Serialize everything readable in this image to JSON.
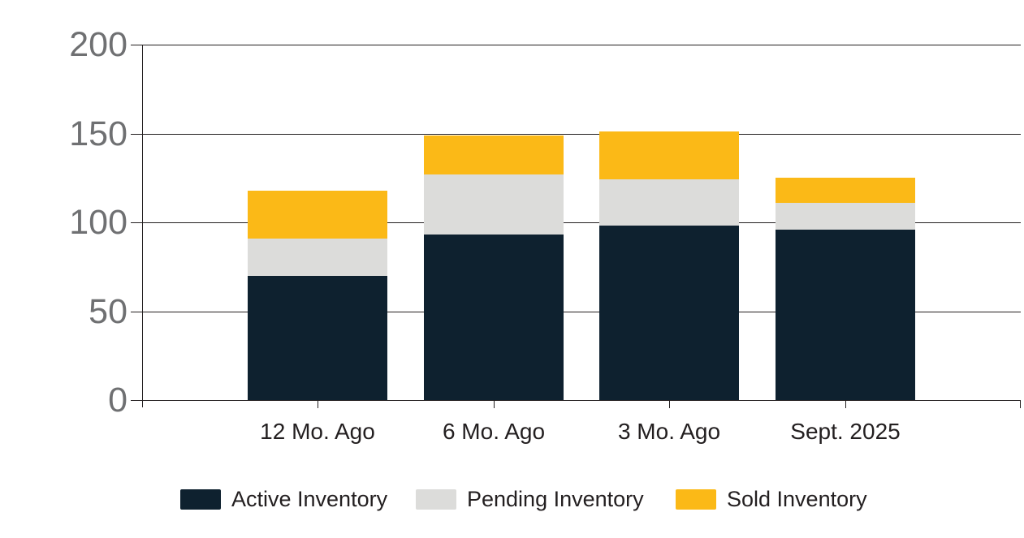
{
  "chart_data": {
    "type": "bar",
    "stacked": true,
    "title": "",
    "xlabel": "",
    "ylabel": "",
    "categories": [
      "12 Mo. Ago",
      "6 Mo. Ago",
      "3 Mo. Ago",
      "Sept. 2025"
    ],
    "series": [
      {
        "name": "Active Inventory",
        "color": "#0E212F",
        "values": [
          70,
          93,
          98,
          96
        ]
      },
      {
        "name": "Pending Inventory",
        "color": "#DCDCDA",
        "values": [
          21,
          34,
          26,
          15
        ]
      },
      {
        "name": "Sold Inventory",
        "color": "#FBB917",
        "values": [
          27,
          22,
          27,
          14
        ]
      }
    ],
    "stack_totals": [
      118,
      149,
      151,
      125
    ],
    "ylim": [
      0,
      200
    ],
    "yticks": [
      0,
      50,
      100,
      150,
      200
    ],
    "grid": "horizontal",
    "legend_position": "bottom"
  },
  "colors": {
    "background": "#FFFFFF",
    "grid_line": "#231F20",
    "axis_line": "#231F20",
    "y_tick_label": "#6F7072",
    "x_tick_label": "#231F20",
    "legend_text": "#231F20"
  }
}
